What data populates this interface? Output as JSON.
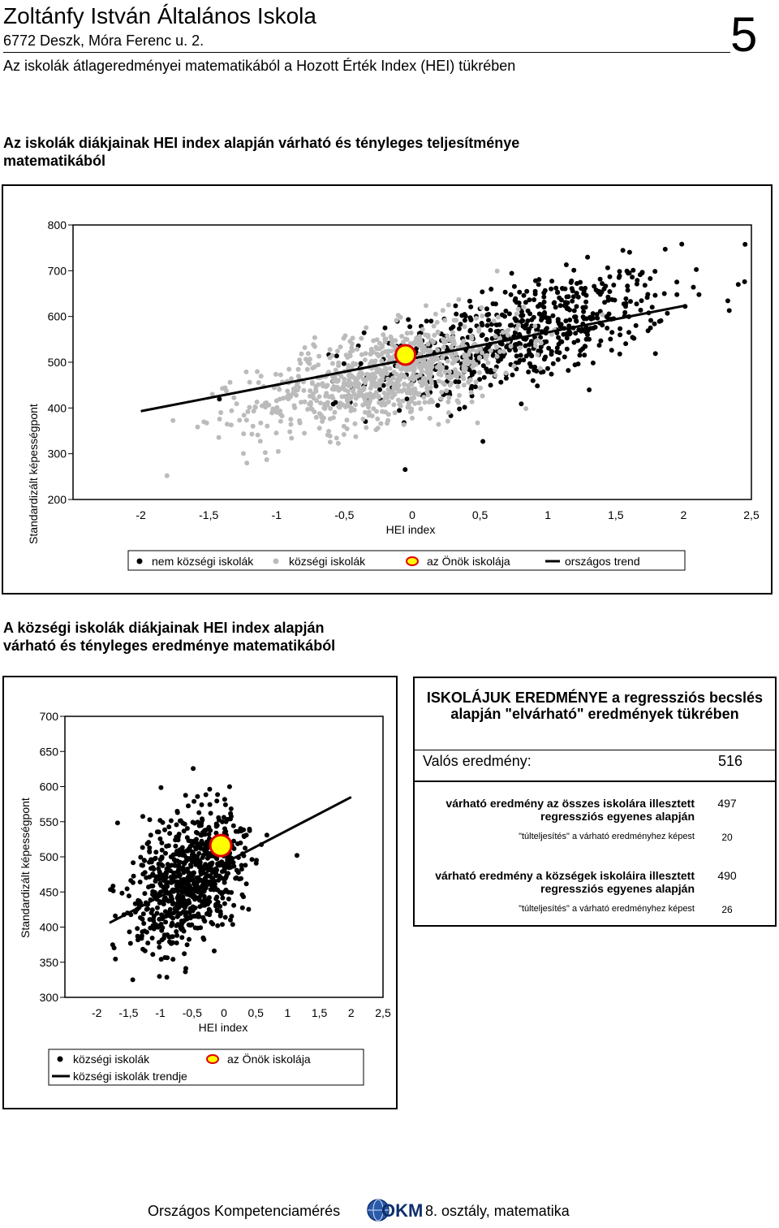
{
  "header": {
    "school_name": "Zoltánfy István Általános Iskola",
    "address": "6772 Deszk, Móra Ferenc u. 2.",
    "subtitle": "Az iskolák átlageredményei matematikából a Hozott Érték Index (HEI) tükrében",
    "page_number": "5"
  },
  "section1_title": [
    "Az iskolák diákjainak HEI index alapján várható és tényleges teljesítménye",
    "matematikából"
  ],
  "section2_title": [
    "A községi iskolák diákjainak HEI index alapján",
    "várható és tényleges eredménye matematikából"
  ],
  "chart_data": [
    {
      "type": "scatter",
      "title": "",
      "xlabel": "HEI index",
      "ylabel": "Standardizált képességpont",
      "xlim": [
        -2.5,
        2.5
      ],
      "ylim": [
        200,
        800
      ],
      "x_tick_labels": [
        "-2",
        "-1,5",
        "-1",
        "-0,5",
        "0",
        "0,5",
        "1",
        "1,5",
        "2",
        "2,5"
      ],
      "y_tick_labels": [
        "200",
        "300",
        "400",
        "500",
        "600",
        "700",
        "800"
      ],
      "grid": false,
      "legend_position": "bottom",
      "series": [
        {
          "name": "nem községi iskolák",
          "color": "#000000",
          "center": [
            0.8,
            560
          ],
          "spread": [
            0.55,
            55
          ],
          "slope": 75,
          "count": 650
        },
        {
          "name": "községi iskolák",
          "color": "#bbbbbb",
          "center": [
            -0.2,
            470
          ],
          "spread": [
            0.5,
            50
          ],
          "slope": 70,
          "count": 850
        },
        {
          "name": "az Önök iskolája",
          "color": "#ffff00",
          "x": [
            -0.05
          ],
          "y": [
            516
          ]
        }
      ],
      "trend": {
        "name": "országos trend",
        "x": [
          -2,
          2
        ],
        "y": [
          393,
          623
        ]
      }
    },
    {
      "type": "scatter",
      "title": "",
      "xlabel": "HEI index",
      "ylabel": "Standardizált képességpont",
      "xlim": [
        -2.5,
        2.5
      ],
      "ylim": [
        300,
        700
      ],
      "x_tick_labels": [
        "-2",
        "-1,5",
        "-1",
        "-0,5",
        "0",
        "0,5",
        "1",
        "1,5",
        "2",
        "2,5"
      ],
      "y_tick_labels": [
        "300",
        "350",
        "400",
        "450",
        "500",
        "550",
        "600",
        "650",
        "700"
      ],
      "grid": false,
      "legend_position": "bottom",
      "series": [
        {
          "name": "községi iskolák",
          "color": "#000000",
          "center": [
            -0.55,
            470
          ],
          "spread": [
            0.45,
            45
          ],
          "slope": 40,
          "count": 800
        },
        {
          "name": "az Önök iskolája",
          "color": "#ffff00",
          "x": [
            -0.05
          ],
          "y": [
            516
          ]
        }
      ],
      "trend": {
        "name": "községi iskolák trendje",
        "x": [
          -1.8,
          2.0
        ],
        "y": [
          406,
          585
        ]
      }
    }
  ],
  "results_panel": {
    "title": "ISKOLÁJUK EREDMÉNYE a regressziós becslés alapján \"elvárható\" eredmények tükrében",
    "actual_label": "Valós eredmény:",
    "actual_value": "516",
    "rows": [
      {
        "label": "várható eredmény az összes iskolára illesztett regressziós egyenes alapján",
        "value": "497",
        "over_label": "\"túlteljesítés\" a várható eredményhez képest",
        "over_value": "20"
      },
      {
        "label": "várható eredmény a községek iskoláira illesztett regressziós egyenes alapján",
        "value": "490",
        "over_label": "\"túlteljesítés\" a várható eredményhez képest",
        "over_value": "26"
      }
    ]
  },
  "footer": {
    "left": "Országos Kompetenciamérés",
    "logo": "OKM",
    "right": "8. osztály, matematika"
  }
}
